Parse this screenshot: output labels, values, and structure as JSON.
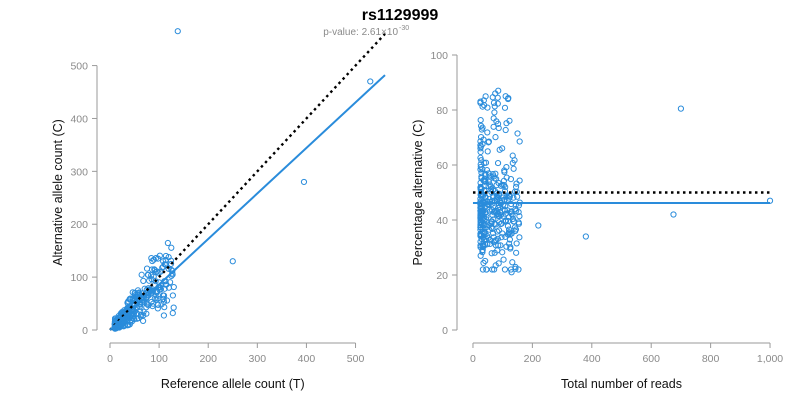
{
  "header": {
    "title": "rs1129999",
    "pvalue_label": "p-value: 2.61×10",
    "pvalue_exponent": "-30"
  },
  "colors": {
    "points": "#2a8cdb",
    "fit": "#2a8cdb",
    "identity": "#000000"
  },
  "chart_data": [
    {
      "type": "scatter",
      "title": "",
      "xlabel": "Reference allele count (T)",
      "ylabel": "Alternative allele count (C)",
      "xlim": [
        0,
        560
      ],
      "ylim": [
        0,
        520
      ],
      "xticks": [
        0,
        100,
        200,
        300,
        400,
        500
      ],
      "xtick_labels": [
        "0",
        "100",
        "200",
        "300",
        "400",
        "500"
      ],
      "yticks": [
        0,
        100,
        200,
        300,
        400,
        500
      ],
      "ytick_labels": [
        "0",
        "100",
        "200",
        "300",
        "400",
        "500"
      ],
      "reference_line": {
        "style": "dotted",
        "x": [
          0,
          560
        ],
        "y": [
          0,
          560
        ]
      },
      "fit_line": {
        "style": "solid",
        "x": [
          0,
          560
        ],
        "y": [
          0,
          482
        ]
      },
      "outliers": [
        {
          "x": 138,
          "y": 565
        },
        {
          "x": 530,
          "y": 470
        },
        {
          "x": 395,
          "y": 280
        },
        {
          "x": 250,
          "y": 130
        },
        {
          "x": 100,
          "y": 90
        },
        {
          "x": 120,
          "y": 80
        },
        {
          "x": 85,
          "y": 75
        },
        {
          "x": 110,
          "y": 65
        }
      ],
      "cluster": {
        "n": 380,
        "x_range": [
          10,
          130
        ],
        "ratio_mean": 0.86,
        "ratio_sd": 0.35,
        "seed": 11
      }
    },
    {
      "type": "scatter",
      "title": "",
      "xlabel": "Total number of reads",
      "ylabel": "Percentage alternative (C)",
      "xlim": [
        -10,
        1010
      ],
      "ylim": [
        0,
        100
      ],
      "xticks": [
        0,
        200,
        400,
        600,
        800,
        1000
      ],
      "xtick_labels": [
        "0",
        "200",
        "400",
        "600",
        "800",
        "1,000"
      ],
      "yticks": [
        0,
        20,
        40,
        60,
        80,
        100
      ],
      "ytick_labels": [
        "0",
        "20",
        "40",
        "60",
        "80",
        "100"
      ],
      "reference_line": {
        "style": "dotted",
        "x": [
          0,
          1000
        ],
        "y": [
          50,
          50
        ]
      },
      "fit_line": {
        "style": "solid",
        "x": [
          0,
          1000
        ],
        "y": [
          46.2,
          46.2
        ]
      },
      "outliers": [
        {
          "x": 700,
          "y": 80.5
        },
        {
          "x": 1000,
          "y": 47
        },
        {
          "x": 675,
          "y": 42
        },
        {
          "x": 380,
          "y": 34
        },
        {
          "x": 220,
          "y": 38
        },
        {
          "x": 130,
          "y": 21
        },
        {
          "x": 110,
          "y": 85
        },
        {
          "x": 118,
          "y": 84
        },
        {
          "x": 85,
          "y": 87
        },
        {
          "x": 75,
          "y": 86
        }
      ],
      "cluster": {
        "n": 360,
        "x_range": [
          25,
          160
        ],
        "y_mean": 42,
        "y_sd": 9,
        "seed": 23
      }
    }
  ]
}
